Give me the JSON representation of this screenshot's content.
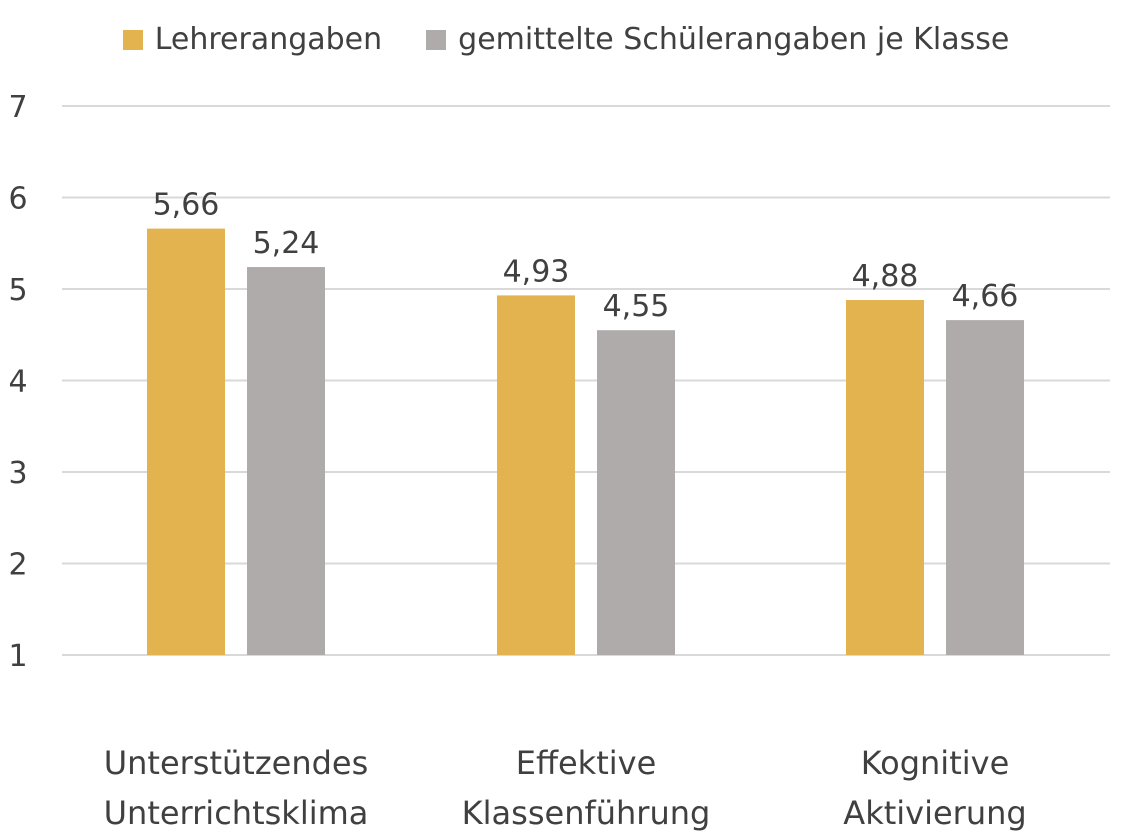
{
  "chart_data": {
    "type": "bar",
    "categories": [
      [
        "Unterstützendes",
        "Unterrichtsklima"
      ],
      [
        "Effektive",
        "Klassenführung"
      ],
      [
        "Kognitive",
        "Aktivierung"
      ]
    ],
    "series": [
      {
        "name": "Lehrerangaben",
        "values": [
          5.66,
          4.93,
          4.88
        ],
        "labels": [
          "5,66",
          "4,93",
          "4,88"
        ],
        "color": "#E3B350"
      },
      {
        "name": "gemittelte Schülerangaben je Klasse",
        "values": [
          5.24,
          4.55,
          4.66
        ],
        "labels": [
          "5,24",
          "4,55",
          "4,66"
        ],
        "color": "#AFABAB"
      }
    ],
    "ylim": [
      1,
      7
    ],
    "yticks": [
      "1",
      "2",
      "3",
      "4",
      "5",
      "6",
      "7"
    ],
    "grid": true,
    "legend": "top"
  },
  "colors": {
    "gridline": "#D9D9D9",
    "text": "#404040"
  }
}
